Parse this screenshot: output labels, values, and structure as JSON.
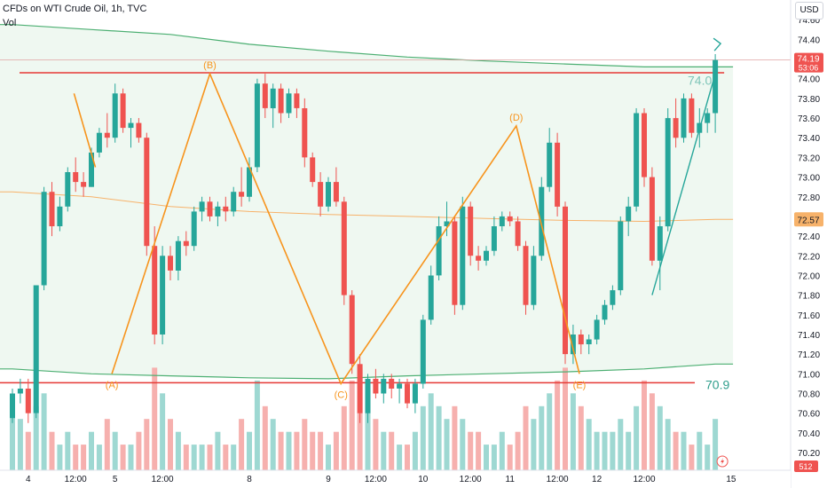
{
  "header": {
    "title": "CFDs on WTI Crude Oil, 1h, TVC",
    "indicator": "Vol",
    "currency_button": "USD"
  },
  "price_badges": {
    "last_price": "74.19",
    "countdown": "53:06",
    "ma_value": "72.57",
    "volume": "512"
  },
  "annotations": {
    "level_upper": "74.0",
    "level_lower": "70.9",
    "pattern_points": [
      {
        "label": "(A)",
        "x": 12.6,
        "y": 71.0
      },
      {
        "label": "(B)",
        "x": 25.0,
        "y": 74.05
      },
      {
        "label": "(C)",
        "x": 41.6,
        "y": 70.9
      },
      {
        "label": "(D)",
        "x": 63.8,
        "y": 73.52
      },
      {
        "label": "(E)",
        "x": 71.8,
        "y": 71.0
      }
    ]
  },
  "colors": {
    "up": "#26a69a",
    "down": "#ef5350",
    "pattern": "#f7941d",
    "resistance": "#e53935",
    "channel": "#4caf72",
    "ma": "#f7b26a"
  },
  "chart_data": {
    "type": "candlestick",
    "x_ticks": [
      {
        "x": 2,
        "label": "4"
      },
      {
        "x": 8,
        "label": "12:00"
      },
      {
        "x": 13,
        "label": "5"
      },
      {
        "x": 19,
        "label": "12:00"
      },
      {
        "x": 30,
        "label": "8"
      },
      {
        "x": 40,
        "label": "9"
      },
      {
        "x": 46,
        "label": "12:00"
      },
      {
        "x": 52,
        "label": "10"
      },
      {
        "x": 58,
        "label": "12:00"
      },
      {
        "x": 63,
        "label": "11"
      },
      {
        "x": 69,
        "label": "12:00"
      },
      {
        "x": 74,
        "label": "12"
      },
      {
        "x": 80,
        "label": "12:00"
      },
      {
        "x": 91,
        "label": "15"
      }
    ],
    "y_ticks": [
      "74.60",
      "74.40",
      "74.20",
      "74.00",
      "73.80",
      "73.60",
      "73.40",
      "73.20",
      "73.00",
      "72.80",
      "72.60",
      "72.40",
      "72.20",
      "72.00",
      "71.80",
      "71.60",
      "71.40",
      "71.20",
      "71.00",
      "70.80",
      "70.60",
      "70.40",
      "70.20"
    ],
    "ylim": [
      70.02,
      74.8
    ],
    "xlim": [
      0,
      96
    ],
    "ohlc": [
      [
        0,
        70.55,
        70.85,
        70.5,
        70.8
      ],
      [
        1,
        70.8,
        70.95,
        70.7,
        70.85
      ],
      [
        2,
        70.85,
        70.95,
        70.5,
        70.6
      ],
      [
        3,
        70.6,
        71.9,
        70.55,
        71.9
      ],
      [
        4,
        71.9,
        72.9,
        71.85,
        72.85
      ],
      [
        5,
        72.85,
        72.95,
        72.4,
        72.5
      ],
      [
        6,
        72.5,
        72.8,
        72.45,
        72.7
      ],
      [
        7,
        72.7,
        73.1,
        72.65,
        73.05
      ],
      [
        8,
        73.05,
        73.2,
        72.85,
        72.95
      ],
      [
        9,
        72.95,
        73.05,
        72.8,
        72.9
      ],
      [
        10,
        72.9,
        73.3,
        72.9,
        73.25
      ],
      [
        11,
        73.25,
        73.5,
        73.2,
        73.45
      ],
      [
        12,
        73.45,
        73.65,
        73.3,
        73.4
      ],
      [
        13,
        73.4,
        73.95,
        73.35,
        73.85
      ],
      [
        14,
        73.85,
        73.9,
        73.45,
        73.5
      ],
      [
        15,
        73.5,
        73.6,
        73.3,
        73.55
      ],
      [
        16,
        73.55,
        73.6,
        73.35,
        73.4
      ],
      [
        17,
        73.4,
        73.45,
        72.2,
        72.3
      ],
      [
        18,
        72.3,
        72.5,
        71.3,
        71.4
      ],
      [
        19,
        71.4,
        72.3,
        71.3,
        72.2
      ],
      [
        20,
        72.2,
        72.3,
        71.95,
        72.05
      ],
      [
        21,
        72.05,
        72.4,
        71.95,
        72.35
      ],
      [
        22,
        72.35,
        72.45,
        72.2,
        72.3
      ],
      [
        23,
        72.3,
        72.7,
        72.25,
        72.65
      ],
      [
        24,
        72.65,
        72.8,
        72.55,
        72.75
      ],
      [
        25,
        72.75,
        72.8,
        72.55,
        72.6
      ],
      [
        26,
        72.6,
        72.75,
        72.5,
        72.7
      ],
      [
        27,
        72.7,
        72.8,
        72.55,
        72.65
      ],
      [
        28,
        72.65,
        72.9,
        72.6,
        72.85
      ],
      [
        29,
        72.85,
        73.1,
        72.7,
        72.8
      ],
      [
        30,
        72.8,
        73.2,
        72.75,
        73.1
      ],
      [
        31,
        73.1,
        74.0,
        73.05,
        73.95
      ],
      [
        32,
        73.95,
        74.05,
        73.6,
        73.7
      ],
      [
        33,
        73.7,
        73.95,
        73.5,
        73.9
      ],
      [
        34,
        73.9,
        73.95,
        73.55,
        73.65
      ],
      [
        35,
        73.65,
        73.9,
        73.6,
        73.85
      ],
      [
        36,
        73.85,
        73.9,
        73.6,
        73.7
      ],
      [
        37,
        73.7,
        73.8,
        73.1,
        73.2
      ],
      [
        38,
        73.2,
        73.25,
        72.9,
        72.95
      ],
      [
        39,
        72.95,
        73.05,
        72.6,
        72.7
      ],
      [
        40,
        72.7,
        73.0,
        72.65,
        72.95
      ],
      [
        41,
        72.95,
        73.1,
        72.7,
        72.75
      ],
      [
        42,
        72.75,
        72.8,
        71.7,
        71.8
      ],
      [
        43,
        71.8,
        71.85,
        71.0,
        71.1
      ],
      [
        44,
        71.1,
        71.2,
        70.5,
        70.6
      ],
      [
        45,
        70.6,
        71.0,
        70.5,
        70.95
      ],
      [
        46,
        70.95,
        71.05,
        70.75,
        70.8
      ],
      [
        47,
        70.8,
        71.0,
        70.7,
        70.95
      ],
      [
        48,
        70.95,
        71.0,
        70.75,
        70.85
      ],
      [
        49,
        70.85,
        70.95,
        70.7,
        70.9
      ],
      [
        50,
        70.9,
        70.95,
        70.65,
        70.7
      ],
      [
        51,
        70.7,
        70.95,
        70.6,
        70.9
      ],
      [
        52,
        70.9,
        71.6,
        70.85,
        71.55
      ],
      [
        53,
        71.55,
        72.1,
        71.5,
        72.0
      ],
      [
        54,
        72.0,
        72.6,
        71.95,
        72.5
      ],
      [
        55,
        72.5,
        72.75,
        72.4,
        72.55
      ],
      [
        56,
        72.55,
        72.6,
        71.6,
        71.7
      ],
      [
        57,
        71.7,
        72.8,
        71.65,
        72.7
      ],
      [
        58,
        72.7,
        72.75,
        72.1,
        72.2
      ],
      [
        59,
        72.2,
        72.3,
        72.05,
        72.15
      ],
      [
        60,
        72.15,
        72.3,
        72.1,
        72.25
      ],
      [
        61,
        72.25,
        72.6,
        72.2,
        72.5
      ],
      [
        62,
        72.5,
        72.65,
        72.45,
        72.6
      ],
      [
        63,
        72.6,
        72.65,
        72.5,
        72.55
      ],
      [
        64,
        72.55,
        72.6,
        72.25,
        72.3
      ],
      [
        65,
        72.3,
        72.35,
        71.6,
        71.7
      ],
      [
        66,
        71.7,
        72.3,
        71.65,
        72.2
      ],
      [
        67,
        72.2,
        73.0,
        72.15,
        72.9
      ],
      [
        68,
        72.9,
        73.5,
        72.85,
        73.35
      ],
      [
        69,
        73.35,
        73.45,
        72.6,
        72.7
      ],
      [
        70,
        72.7,
        72.75,
        71.1,
        71.2
      ],
      [
        71,
        71.2,
        71.5,
        71.1,
        71.4
      ],
      [
        72,
        71.4,
        71.45,
        71.2,
        71.3
      ],
      [
        73,
        71.3,
        71.4,
        71.2,
        71.35
      ],
      [
        74,
        71.35,
        71.6,
        71.3,
        71.55
      ],
      [
        75,
        71.55,
        71.75,
        71.5,
        71.7
      ],
      [
        76,
        71.7,
        71.9,
        71.65,
        71.85
      ],
      [
        77,
        71.85,
        72.6,
        71.8,
        72.55
      ],
      [
        78,
        72.55,
        72.8,
        72.4,
        72.7
      ],
      [
        79,
        72.7,
        73.7,
        72.65,
        73.65
      ],
      [
        80,
        73.65,
        73.7,
        72.9,
        73.0
      ],
      [
        81,
        73.0,
        73.1,
        72.1,
        72.15
      ],
      [
        82,
        72.15,
        72.6,
        71.85,
        72.5
      ],
      [
        83,
        72.5,
        73.7,
        72.45,
        73.6
      ],
      [
        84,
        73.6,
        73.8,
        73.3,
        73.4
      ],
      [
        85,
        73.4,
        73.85,
        73.35,
        73.8
      ],
      [
        86,
        73.8,
        73.85,
        73.4,
        73.45
      ],
      [
        87,
        73.45,
        73.7,
        73.3,
        73.55
      ],
      [
        88,
        73.55,
        73.7,
        73.45,
        73.65
      ],
      [
        89,
        73.65,
        74.25,
        73.45,
        74.19
      ]
    ],
    "volume_scale": [
      0,
      9
    ],
    "volumes": [
      5,
      4,
      3,
      5,
      6,
      3,
      2,
      3,
      2,
      2,
      3,
      2,
      4,
      3,
      2,
      2,
      3,
      4,
      8,
      6,
      4,
      3,
      2,
      2,
      2,
      2,
      3,
      2,
      2,
      4,
      3,
      7,
      5,
      4,
      3,
      3,
      3,
      4,
      3,
      3,
      2,
      3,
      5,
      7,
      8,
      6,
      4,
      3,
      3,
      2,
      2,
      3,
      5,
      6,
      5,
      4,
      5,
      4,
      3,
      3,
      2,
      2,
      3,
      2,
      3,
      5,
      4,
      5,
      6,
      7,
      8,
      6,
      5,
      4,
      3,
      3,
      3,
      4,
      3,
      5,
      7,
      6,
      5,
      4,
      3,
      3,
      2,
      3,
      2,
      4
    ],
    "moving_average": [
      [
        0,
        72.85
      ],
      [
        10,
        72.8
      ],
      [
        20,
        72.7
      ],
      [
        30,
        72.65
      ],
      [
        40,
        72.62
      ],
      [
        50,
        72.6
      ],
      [
        60,
        72.58
      ],
      [
        70,
        72.56
      ],
      [
        80,
        72.55
      ],
      [
        89,
        72.57
      ]
    ],
    "channel_upper": [
      [
        0,
        74.55
      ],
      [
        10,
        74.5
      ],
      [
        20,
        74.45
      ],
      [
        30,
        74.35
      ],
      [
        40,
        74.28
      ],
      [
        50,
        74.22
      ],
      [
        60,
        74.18
      ],
      [
        70,
        74.15
      ],
      [
        80,
        74.12
      ],
      [
        89,
        74.12
      ]
    ],
    "channel_lower": [
      [
        0,
        71.05
      ],
      [
        10,
        71.0
      ],
      [
        20,
        70.98
      ],
      [
        30,
        70.96
      ],
      [
        40,
        70.95
      ],
      [
        50,
        70.98
      ],
      [
        60,
        71.0
      ],
      [
        70,
        71.02
      ],
      [
        80,
        71.05
      ],
      [
        89,
        71.1
      ]
    ],
    "resistance": 74.06,
    "support": 70.91,
    "pattern_line": [
      [
        12.6,
        71.0
      ],
      [
        25.0,
        74.05
      ],
      [
        41.6,
        70.9
      ],
      [
        63.8,
        73.52
      ],
      [
        71.8,
        71.0
      ]
    ],
    "trend_line": [
      [
        81,
        71.8
      ],
      [
        89,
        74.05
      ]
    ],
    "trend_line_left": [
      [
        7.8,
        73.85
      ],
      [
        10.5,
        73.1
      ]
    ]
  }
}
